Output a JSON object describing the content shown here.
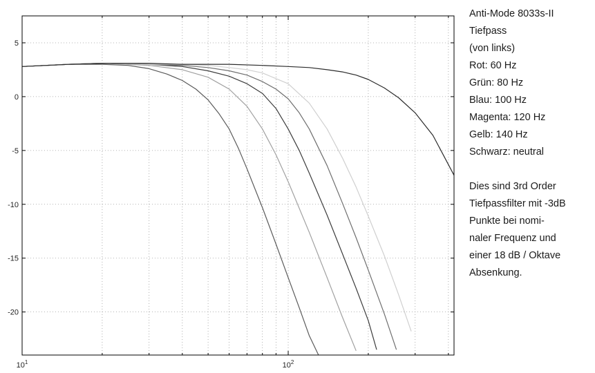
{
  "chart_data": {
    "type": "line",
    "xscale": "log",
    "xlim": [
      10,
      420
    ],
    "ylim": [
      -24,
      7.5
    ],
    "grid": true,
    "xticks": [
      {
        "value": 10,
        "base": "10",
        "exp": "1"
      },
      {
        "value": 100,
        "base": "10",
        "exp": "2"
      }
    ],
    "yticks": [
      5,
      0,
      -5,
      -10,
      -15,
      -20
    ],
    "series": [
      {
        "name": "Rot: 60 Hz",
        "color": "#5a5a5a",
        "x": [
          10,
          15,
          20,
          25,
          30,
          35,
          40,
          45,
          50,
          55,
          60,
          65,
          70,
          80,
          90,
          100,
          110,
          120,
          130
        ],
        "y": [
          2.8,
          3.0,
          3.0,
          2.9,
          2.6,
          2.1,
          1.5,
          0.7,
          -0.3,
          -1.6,
          -3.0,
          -4.8,
          -6.7,
          -10.3,
          -13.7,
          -16.8,
          -19.6,
          -22.2,
          -24
        ]
      },
      {
        "name": "Grün: 80 Hz",
        "color": "#a0a0a0",
        "x": [
          10,
          15,
          20,
          30,
          40,
          50,
          60,
          70,
          80,
          90,
          100,
          120,
          140,
          160,
          180
        ],
        "y": [
          2.8,
          3.0,
          3.1,
          2.9,
          2.5,
          1.8,
          0.7,
          -0.9,
          -3.0,
          -5.4,
          -7.9,
          -12.6,
          -16.8,
          -20.5,
          -23.6
        ]
      },
      {
        "name": "Blau: 100 Hz",
        "color": "#3c3c3c",
        "x": [
          10,
          15,
          20,
          30,
          40,
          50,
          60,
          70,
          80,
          90,
          100,
          110,
          120,
          140,
          160,
          180,
          200,
          215
        ],
        "y": [
          2.8,
          3.0,
          3.1,
          3.0,
          2.8,
          2.4,
          1.9,
          1.2,
          0.3,
          -1.1,
          -3.0,
          -5.0,
          -7.1,
          -11.0,
          -14.6,
          -17.8,
          -20.8,
          -23.5
        ]
      },
      {
        "name": "Magenta: 120 Hz",
        "color": "#6e6e6e",
        "x": [
          10,
          15,
          20,
          30,
          40,
          50,
          60,
          70,
          80,
          90,
          100,
          110,
          120,
          140,
          160,
          180,
          200,
          230,
          255
        ],
        "y": [
          2.8,
          3.0,
          3.1,
          3.0,
          2.9,
          2.7,
          2.4,
          2.0,
          1.4,
          0.7,
          -0.2,
          -1.5,
          -3.0,
          -6.4,
          -9.9,
          -13.1,
          -16.1,
          -20.2,
          -23.5
        ]
      },
      {
        "name": "Gelb: 140 Hz",
        "color": "#cfcfcf",
        "x": [
          10,
          15,
          20,
          30,
          40,
          50,
          60,
          70,
          80,
          100,
          120,
          140,
          160,
          180,
          200,
          230,
          260,
          290
        ],
        "y": [
          2.8,
          3.0,
          3.1,
          3.0,
          3.0,
          2.9,
          2.7,
          2.5,
          2.2,
          1.2,
          -0.6,
          -3.0,
          -5.7,
          -8.4,
          -11.1,
          -14.8,
          -18.4,
          -21.8
        ]
      },
      {
        "name": "Schwarz: neutral",
        "color": "#2a2a2a",
        "x": [
          10,
          15,
          20,
          30,
          40,
          50,
          60,
          80,
          100,
          120,
          140,
          160,
          180,
          200,
          230,
          260,
          300,
          350,
          420
        ],
        "y": [
          2.8,
          3.0,
          3.1,
          3.1,
          3.0,
          3.0,
          3.0,
          2.9,
          2.8,
          2.7,
          2.5,
          2.3,
          2.0,
          1.6,
          0.8,
          -0.1,
          -1.5,
          -3.6,
          -7.3
        ]
      }
    ]
  },
  "legend": {
    "title": "Anti-Mode 8033s-II",
    "subtitle": "Tiefpass",
    "order_note": "(von links)",
    "entries": [
      "Rot: 60 Hz",
      "Grün: 80 Hz",
      "Blau: 100 Hz",
      "Magenta: 120 Hz",
      "Gelb: 140 Hz",
      "Schwarz: neutral"
    ]
  },
  "note": {
    "lines": [
      "Dies sind 3rd Order",
      "Tiefpassfilter mit -3dB",
      "Punkte bei nomi-",
      "naler Frequenz und",
      "einer 18 dB / Oktave",
      "Absenkung."
    ]
  }
}
